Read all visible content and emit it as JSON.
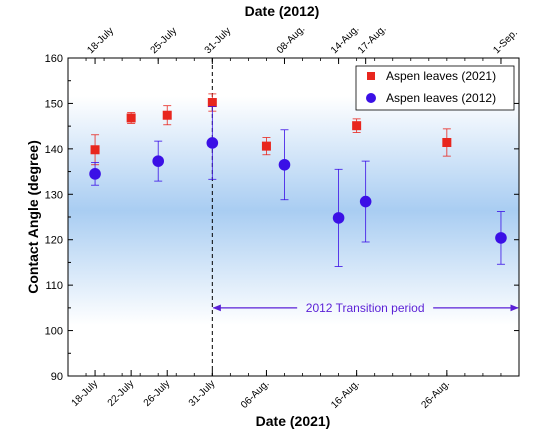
{
  "chart_data": {
    "type": "scatter",
    "title": "",
    "ylabel": "Contact Angle (degree)",
    "xlabel_bottom": "Date (2021)",
    "xlabel_top": "Date (2012)",
    "ylim": [
      90,
      160
    ],
    "yticks": [
      90,
      100,
      110,
      120,
      130,
      140,
      150,
      160
    ],
    "x_range_days_from_jul15": [
      0,
      50
    ],
    "bottom_ticks": [
      {
        "label": "18-July",
        "day": 3
      },
      {
        "label": "22-July",
        "day": 7
      },
      {
        "label": "26-July",
        "day": 11
      },
      {
        "label": "31-July",
        "day": 16
      },
      {
        "label": "06-Aug.",
        "day": 22
      },
      {
        "label": "16-Aug.",
        "day": 32
      },
      {
        "label": "26-Aug.",
        "day": 42
      }
    ],
    "top_ticks": [
      {
        "label": "18-July",
        "day": 3
      },
      {
        "label": "25-July",
        "day": 10
      },
      {
        "label": "31-July",
        "day": 16
      },
      {
        "label": "08-Aug.",
        "day": 24
      },
      {
        "label": "14-Aug.",
        "day": 30
      },
      {
        "label": "17-Aug.",
        "day": 33
      },
      {
        "label": "1-Sep.",
        "day": 48
      }
    ],
    "series": [
      {
        "name": "Aspen leaves (2021)",
        "color": "#e8261e",
        "marker": "square",
        "points": [
          {
            "x": "18-July",
            "y": 139.8,
            "err": 3.3
          },
          {
            "x": "22-July",
            "y": 146.8,
            "err": 1.2
          },
          {
            "x": "26-July",
            "y": 147.4,
            "err": 2.1
          },
          {
            "x": "31-July",
            "y": 150.2,
            "err": 1.9
          },
          {
            "x": "06-Aug.",
            "y": 140.6,
            "err": 1.9
          },
          {
            "x": "16-Aug.",
            "y": 145.1,
            "err": 1.5
          },
          {
            "x": "26-Aug.",
            "y": 141.4,
            "err": 3.0
          }
        ]
      },
      {
        "name": "Aspen leaves (2012)",
        "color": "#3b10e6",
        "marker": "circle",
        "points": [
          {
            "x": "18-July",
            "y": 134.5,
            "err": 2.5
          },
          {
            "x": "25-July",
            "y": 137.3,
            "err": 4.4
          },
          {
            "x": "31-July",
            "y": 141.3,
            "err": 8.0
          },
          {
            "x": "08-Aug.",
            "y": 136.5,
            "err": 7.7
          },
          {
            "x": "14-Aug.",
            "y": 124.8,
            "err": 10.7
          },
          {
            "x": "17-Aug.",
            "y": 128.4,
            "err": 8.9
          },
          {
            "x": "1-Sep.",
            "y": 120.4,
            "err": 5.8
          }
        ]
      }
    ],
    "annotation": {
      "text": "2012 Transition period",
      "y": 105,
      "from_day": 16,
      "to_day": 50,
      "color": "#5a1fd6"
    },
    "divider_day": 16,
    "legend_position": "top-right",
    "background": "blue horizontal band gradient centered near 130"
  }
}
